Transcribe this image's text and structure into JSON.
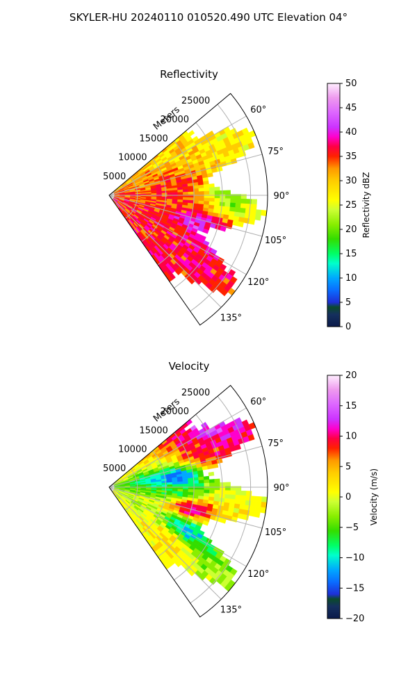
{
  "figure": {
    "suptitle": "SKYLER-HU  20240110  010520.490 UTC Elevation 04°"
  },
  "chart_data": [
    {
      "type": "heatmap",
      "projection": "polar-sector",
      "title": "Reflectivity",
      "radial_label": "Meters",
      "range_ticks": [
        5000,
        10000,
        15000,
        20000,
        25000
      ],
      "range_tick_labels": [
        "5000",
        "10000",
        "15000",
        "20000",
        "25000"
      ],
      "range_max": 28000,
      "azimuth_range_deg": [
        50,
        145
      ],
      "azimuth_ticks": [
        60,
        75,
        90,
        105,
        120,
        135
      ],
      "azimuth_tick_labels": [
        "60°",
        "75°",
        "90°",
        "105°",
        "120°",
        "135°"
      ],
      "grid": true,
      "colorbar": {
        "label": "Reflectivity dBZ",
        "vmin": 0,
        "vmax": 50,
        "ticks": [
          0,
          5,
          10,
          15,
          20,
          25,
          30,
          35,
          40,
          45,
          50
        ],
        "tick_labels": [
          "0",
          "5",
          "10",
          "15",
          "20",
          "25",
          "30",
          "35",
          "40",
          "45",
          "50"
        ],
        "stops": [
          [
            0,
            "#0b1a4a"
          ],
          [
            0.05,
            "#15305e"
          ],
          [
            0.08,
            "#0a4a2a"
          ],
          [
            0.1,
            "#1e2fd6"
          ],
          [
            0.15,
            "#0a6cff"
          ],
          [
            0.2,
            "#00a8ff"
          ],
          [
            0.26,
            "#00ffcc"
          ],
          [
            0.3,
            "#00ff66"
          ],
          [
            0.36,
            "#33dd00"
          ],
          [
            0.42,
            "#88ee00"
          ],
          [
            0.48,
            "#ccff33"
          ],
          [
            0.52,
            "#ffff00"
          ],
          [
            0.6,
            "#ffcc00"
          ],
          [
            0.65,
            "#ff9900"
          ],
          [
            0.7,
            "#ff2200"
          ],
          [
            0.74,
            "#ff0044"
          ],
          [
            0.78,
            "#ff00cc"
          ],
          [
            0.82,
            "#cc33ff"
          ],
          [
            0.88,
            "#dd66ff"
          ],
          [
            0.94,
            "#ee99ee"
          ],
          [
            1,
            "#ffeeff"
          ]
        ]
      },
      "field_description": "mostly yellow/orange 25-32 dBZ with red bands (35-38 dBZ) and magenta core near 110-115°",
      "data_features": [
        {
          "az": 58,
          "r": 23000,
          "value": 28
        },
        {
          "az": 65,
          "r": 18000,
          "value": 30
        },
        {
          "az": 80,
          "r": 12000,
          "value": 36
        },
        {
          "az": 95,
          "r": 12000,
          "value": 36
        },
        {
          "az": 110,
          "r": 17000,
          "value": 42
        },
        {
          "az": 118,
          "r": 14000,
          "value": 37
        },
        {
          "az": 90,
          "r": 22000,
          "value": 22
        }
      ]
    },
    {
      "type": "heatmap",
      "projection": "polar-sector",
      "title": "Velocity",
      "radial_label": "Meters",
      "range_ticks": [
        5000,
        10000,
        15000,
        20000,
        25000
      ],
      "range_tick_labels": [
        "5000",
        "10000",
        "15000",
        "20000",
        "25000"
      ],
      "range_max": 28000,
      "azimuth_range_deg": [
        50,
        145
      ],
      "azimuth_ticks": [
        60,
        75,
        90,
        105,
        120,
        135
      ],
      "azimuth_tick_labels": [
        "60°",
        "75°",
        "90°",
        "105°",
        "120°",
        "135°"
      ],
      "grid": true,
      "colorbar": {
        "label": "Velocity (m/s)",
        "vmin": -20,
        "vmax": 20,
        "ticks": [
          -20,
          -15,
          -10,
          -5,
          0,
          5,
          10,
          15,
          20
        ],
        "tick_labels": [
          "−20",
          "−15",
          "−10",
          "−5",
          "0",
          "5",
          "10",
          "15",
          "20"
        ],
        "stops": [
          [
            0,
            "#0b1a4a"
          ],
          [
            0.05,
            "#15305e"
          ],
          [
            0.08,
            "#0a4a2a"
          ],
          [
            0.1,
            "#1e2fd6"
          ],
          [
            0.15,
            "#0a6cff"
          ],
          [
            0.2,
            "#00a8ff"
          ],
          [
            0.26,
            "#00ffcc"
          ],
          [
            0.3,
            "#00ff66"
          ],
          [
            0.36,
            "#33dd00"
          ],
          [
            0.42,
            "#88ee00"
          ],
          [
            0.48,
            "#ccff33"
          ],
          [
            0.52,
            "#ffff00"
          ],
          [
            0.6,
            "#ffcc00"
          ],
          [
            0.65,
            "#ff9900"
          ],
          [
            0.7,
            "#ff2200"
          ],
          [
            0.74,
            "#ff0044"
          ],
          [
            0.78,
            "#ff00cc"
          ],
          [
            0.82,
            "#cc33ff"
          ],
          [
            0.88,
            "#dd66ff"
          ],
          [
            0.94,
            "#ee99ee"
          ],
          [
            1,
            "#ffeeff"
          ]
        ]
      },
      "field_description": "banded velocity: purple/magenta at 60°, red/orange 70-80°, cyan/green 85-95°, red/magenta 100-110°, cyan 115-120°, orange 130-140°",
      "data_features": [
        {
          "az": 58,
          "r": 22000,
          "value": 15
        },
        {
          "az": 70,
          "r": 18000,
          "value": 10
        },
        {
          "az": 82,
          "r": 12000,
          "value": -12
        },
        {
          "az": 95,
          "r": 12000,
          "value": -5
        },
        {
          "az": 105,
          "r": 15000,
          "value": 12
        },
        {
          "az": 118,
          "r": 16000,
          "value": -10
        },
        {
          "az": 132,
          "r": 14000,
          "value": 4
        }
      ]
    }
  ]
}
